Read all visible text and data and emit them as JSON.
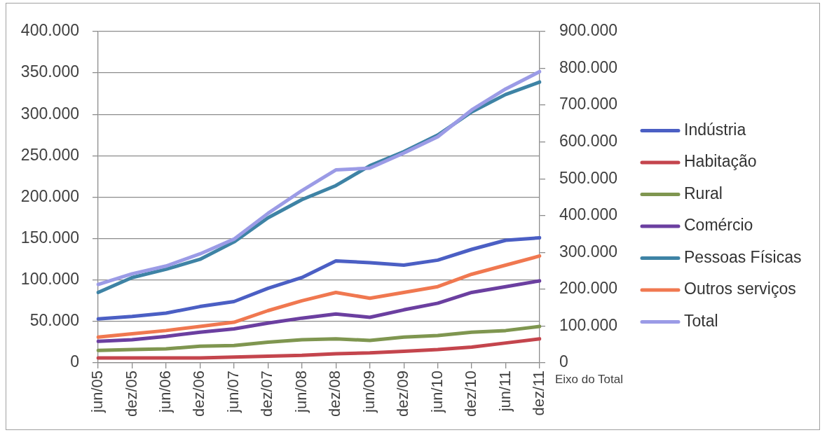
{
  "chart_data": {
    "type": "line",
    "categories": [
      "jun/05",
      "dez/05",
      "jun/06",
      "dez/06",
      "jun/07",
      "dez/07",
      "jun/08",
      "dez/08",
      "jun/09",
      "dez/09",
      "jun/10",
      "dez/10",
      "jun/11",
      "dez/11"
    ],
    "series": [
      {
        "name": "Indústria",
        "color": "#4b5fc4",
        "values": [
          53000,
          56000,
          60000,
          68000,
          74000,
          90000,
          103000,
          123000,
          121000,
          118000,
          124000,
          137000,
          148000,
          151000
        ]
      },
      {
        "name": "Habitação",
        "color": "#c4454d",
        "values": [
          6000,
          6000,
          6000,
          6000,
          7000,
          8000,
          9000,
          11000,
          12000,
          14000,
          16000,
          19000,
          24000,
          29000
        ]
      },
      {
        "name": "Rural",
        "color": "#7f9650",
        "values": [
          15000,
          16000,
          17000,
          20000,
          21000,
          25000,
          28000,
          29000,
          27000,
          31000,
          33000,
          37000,
          39000,
          44000
        ]
      },
      {
        "name": "Comércio",
        "color": "#6b3fa0",
        "values": [
          26000,
          28000,
          32000,
          37000,
          41000,
          48000,
          54000,
          59000,
          55000,
          64000,
          72000,
          85000,
          92000,
          99000
        ]
      },
      {
        "name": "Pessoas Físicas",
        "color": "#3e83a5",
        "values": [
          85000,
          103000,
          113000,
          125000,
          146000,
          175000,
          197000,
          214000,
          238000,
          255000,
          275000,
          303000,
          324000,
          339000
        ]
      },
      {
        "name": "Outros serviços",
        "color": "#f07850",
        "values": [
          31000,
          35000,
          39000,
          44000,
          49000,
          63000,
          75000,
          85000,
          78000,
          85000,
          92000,
          107000,
          118000,
          129000
        ]
      },
      {
        "name": "Total",
        "color": "#9b9be6",
        "axis": "y2",
        "values": [
          213000,
          242000,
          263000,
          296000,
          336000,
          406000,
          468000,
          524000,
          529000,
          570000,
          614000,
          687000,
          744000,
          791000
        ]
      }
    ],
    "ylim": [
      0,
      400000
    ],
    "yticks": [
      0,
      {
        "value": 50000,
        "label": "50.000"
      },
      {
        "value": 100000,
        "label": "100.000"
      },
      {
        "value": 150000,
        "label": "150.000"
      },
      {
        "value": 200000,
        "label": "200.000"
      },
      {
        "value": 250000,
        "label": "250.000"
      },
      {
        "value": 300000,
        "label": "300.000"
      },
      {
        "value": 350000,
        "label": "350.000"
      },
      {
        "value": 400000,
        "label": "400.000"
      }
    ],
    "y2lim": [
      0,
      900000
    ],
    "y2ticks": [
      0,
      {
        "value": 100000,
        "label": "100.000"
      },
      {
        "value": 200000,
        "label": "200.000"
      },
      {
        "value": 300000,
        "label": "300.000"
      },
      {
        "value": 400000,
        "label": "400.000"
      },
      {
        "value": 500000,
        "label": "500.000"
      },
      {
        "value": 600000,
        "label": "600.000"
      },
      {
        "value": 700000,
        "label": "700.000"
      },
      {
        "value": 800000,
        "label": "800.000"
      },
      {
        "value": 900000,
        "label": "900.000"
      }
    ],
    "y2label": "Eixo do Total",
    "grid": "y",
    "legend": "right",
    "marker": "none",
    "line_style": "solid"
  }
}
